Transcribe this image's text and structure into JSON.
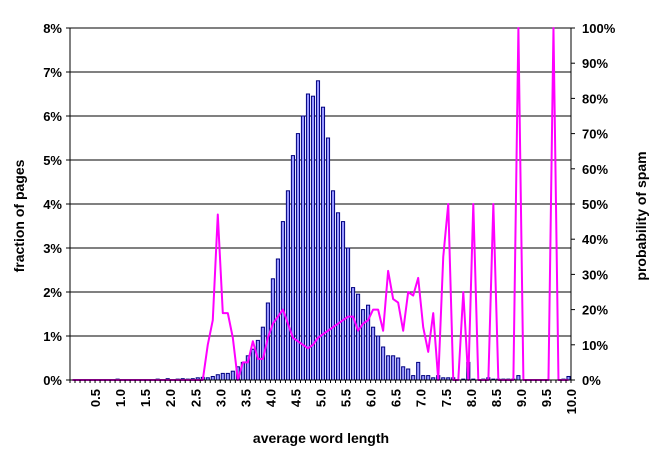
{
  "chart_data": {
    "type": "bar",
    "title": "",
    "xlabel": "average word length",
    "ylabel": "fraction of pages",
    "y2label": "probability of spam",
    "xlim": [
      0,
      10
    ],
    "ylim": [
      0,
      8
    ],
    "y2lim": [
      0,
      100
    ],
    "grid": true,
    "x_ticks": [
      "0.5",
      "1.0",
      "1.5",
      "2.0",
      "2.5",
      "3.0",
      "3.5",
      "4.0",
      "4.5",
      "5.0",
      "5.5",
      "6.0",
      "6.5",
      "7.0",
      "7.5",
      "8.0",
      "8.5",
      "9.0",
      "9.5",
      "10.0"
    ],
    "y_ticks": [
      "0%",
      "1%",
      "2%",
      "3%",
      "4%",
      "5%",
      "6%",
      "7%",
      "8%"
    ],
    "y2_ticks": [
      "0%",
      "10%",
      "20%",
      "30%",
      "40%",
      "50%",
      "60%",
      "70%",
      "80%",
      "90%",
      "100%"
    ],
    "series": [
      {
        "type": "bar",
        "axis": "left",
        "unit": "%",
        "x": [
          0.1,
          0.2,
          0.3,
          0.4,
          0.5,
          0.6,
          0.7,
          0.8,
          0.9,
          1.0,
          1.1,
          1.2,
          1.3,
          1.4,
          1.5,
          1.6,
          1.7,
          1.8,
          1.9,
          2.0,
          2.1,
          2.2,
          2.3,
          2.4,
          2.5,
          2.6,
          2.7,
          2.8,
          2.9,
          3.0,
          3.1,
          3.2,
          3.3,
          3.4,
          3.5,
          3.6,
          3.7,
          3.8,
          3.9,
          4.0,
          4.1,
          4.2,
          4.3,
          4.4,
          4.5,
          4.6,
          4.7,
          4.8,
          4.9,
          5.0,
          5.1,
          5.2,
          5.3,
          5.4,
          5.5,
          5.6,
          5.7,
          5.8,
          5.9,
          6.0,
          6.1,
          6.2,
          6.3,
          6.4,
          6.5,
          6.6,
          6.7,
          6.8,
          6.9,
          7.0,
          7.1,
          7.2,
          7.3,
          7.4,
          7.5,
          7.6,
          7.7,
          7.8,
          7.9,
          8.0,
          8.1,
          8.2,
          8.3,
          8.4,
          8.5,
          8.6,
          8.7,
          8.8,
          8.9,
          9.0,
          9.1,
          9.2,
          9.3,
          9.4,
          9.5,
          9.6,
          9.7,
          9.8,
          9.9,
          10.0
        ],
        "values": [
          0,
          0,
          0,
          0,
          0,
          0,
          0,
          0,
          0,
          0.02,
          0,
          0,
          0,
          0,
          0,
          0,
          0,
          0.02,
          0,
          0.03,
          0,
          0.02,
          0.03,
          0.02,
          0.03,
          0.05,
          0.06,
          0.05,
          0.08,
          0.12,
          0.15,
          0.15,
          0.2,
          0.3,
          0.4,
          0.55,
          0.7,
          0.9,
          1.2,
          1.75,
          2.3,
          2.75,
          3.6,
          4.3,
          5.1,
          5.6,
          6.0,
          6.5,
          6.45,
          6.8,
          6.2,
          5.5,
          4.3,
          3.8,
          3.6,
          3.0,
          2.1,
          1.95,
          1.6,
          1.7,
          1.2,
          1.0,
          0.75,
          0.55,
          0.55,
          0.5,
          0.3,
          0.25,
          0.1,
          0.4,
          0.1,
          0.1,
          0.05,
          0.1,
          0.05,
          0.05,
          0.05,
          0,
          0.02,
          0.4,
          0.02,
          0,
          0.02,
          0.05,
          0.02,
          0.02,
          0.02,
          0.02,
          0.02,
          0.1,
          0,
          0,
          0,
          0,
          0,
          0,
          0,
          0,
          0.02,
          0.08
        ]
      },
      {
        "type": "line",
        "axis": "right",
        "unit": "%",
        "color": "#ff00ff",
        "x": [
          0.1,
          0.2,
          0.3,
          0.4,
          0.5,
          0.6,
          0.7,
          0.8,
          0.9,
          1.0,
          1.1,
          1.2,
          1.3,
          1.4,
          1.5,
          1.6,
          1.7,
          1.8,
          1.9,
          2.0,
          2.1,
          2.2,
          2.3,
          2.4,
          2.5,
          2.6,
          2.7,
          2.8,
          2.9,
          3.0,
          3.1,
          3.2,
          3.3,
          3.4,
          3.5,
          3.6,
          3.7,
          3.8,
          3.9,
          4.0,
          4.1,
          4.2,
          4.3,
          4.4,
          4.5,
          4.6,
          4.7,
          4.8,
          4.9,
          5.0,
          5.1,
          5.2,
          5.3,
          5.4,
          5.5,
          5.6,
          5.7,
          5.8,
          5.9,
          6.0,
          6.1,
          6.2,
          6.3,
          6.4,
          6.5,
          6.6,
          6.7,
          6.8,
          6.9,
          7.0,
          7.1,
          7.2,
          7.3,
          7.4,
          7.5,
          7.6,
          7.7,
          7.8,
          7.9,
          8.0,
          8.1,
          8.2,
          8.3,
          8.4,
          8.5,
          8.6,
          8.7,
          8.8,
          8.9,
          9.0,
          9.1,
          9.2,
          9.3,
          9.4,
          9.5,
          9.6,
          9.7,
          9.8,
          9.9,
          10.0
        ],
        "values": [
          0,
          0,
          0,
          0,
          0,
          0,
          0,
          0,
          0,
          0,
          0,
          0,
          0,
          0,
          0,
          0,
          0,
          0,
          0,
          0,
          0,
          0,
          0,
          0,
          0,
          0,
          0,
          10,
          17,
          47,
          19,
          19,
          12,
          0,
          5,
          5,
          11,
          6,
          6,
          12,
          16,
          18,
          20,
          16,
          12,
          11,
          10,
          9,
          10,
          12,
          13,
          14,
          15,
          16,
          17,
          18,
          18,
          14,
          16,
          17,
          20,
          20,
          14,
          31,
          23,
          22,
          14,
          25,
          24,
          29,
          15,
          8,
          19,
          0,
          35,
          50,
          0,
          0,
          25,
          0,
          50,
          0,
          0,
          0,
          50,
          0,
          0,
          0,
          0,
          100,
          0,
          0,
          0,
          0,
          0,
          0,
          100,
          0,
          0,
          0
        ]
      }
    ]
  }
}
